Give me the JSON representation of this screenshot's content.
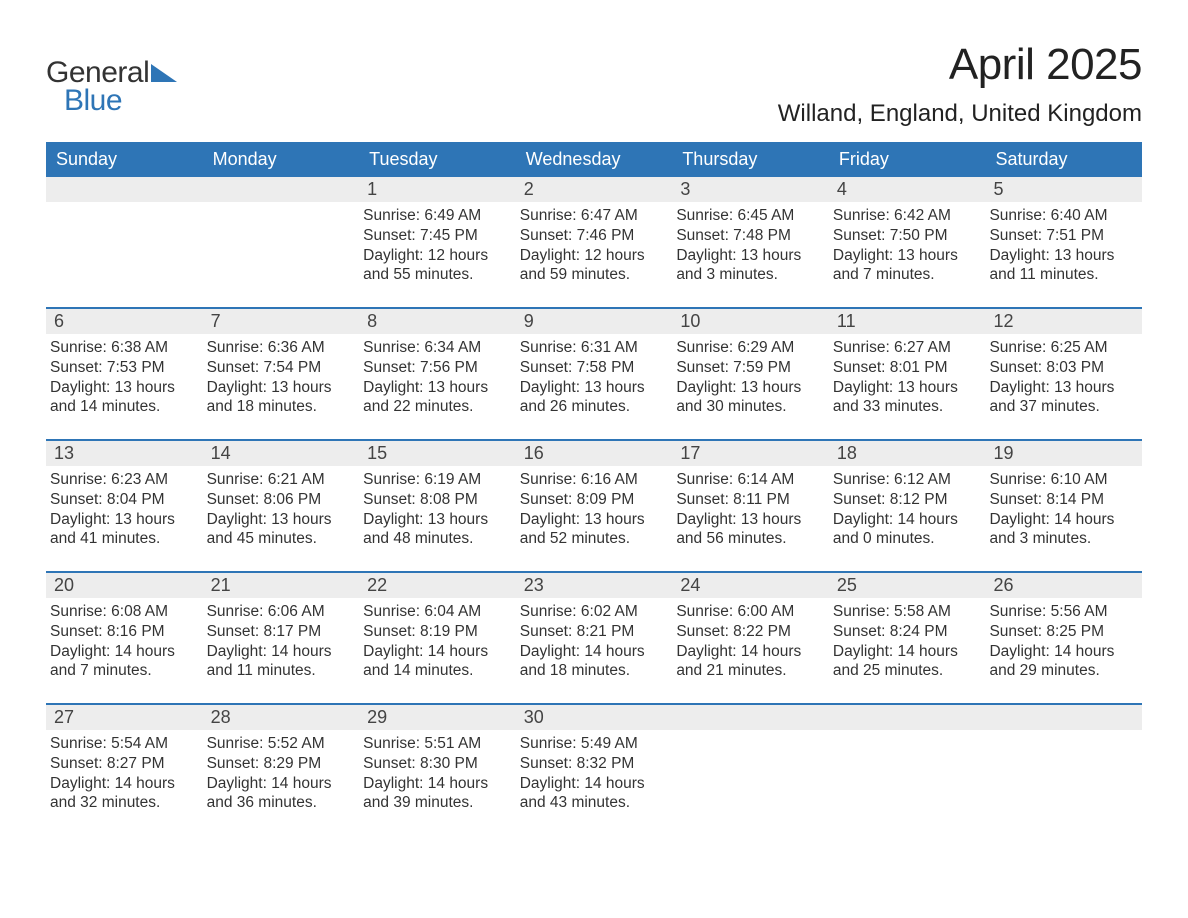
{
  "logo": {
    "line1": "General",
    "line2": "Blue",
    "flag_color": "#2e75b6"
  },
  "title": "April 2025",
  "location": "Willand, England, United Kingdom",
  "colors": {
    "header_bg": "#2e75b6",
    "header_text": "#ffffff",
    "daynum_bg": "#ededed",
    "text": "#333333",
    "rule": "#2e75b6",
    "page_bg": "#ffffff"
  },
  "typography": {
    "title_fontsize_pt": 33,
    "location_fontsize_pt": 18,
    "dow_fontsize_pt": 14,
    "body_fontsize_pt": 12,
    "daynum_fontsize_pt": 14,
    "font_family": "Arial"
  },
  "days_of_week": [
    "Sunday",
    "Monday",
    "Tuesday",
    "Wednesday",
    "Thursday",
    "Friday",
    "Saturday"
  ],
  "weeks": [
    [
      null,
      null,
      {
        "d": "1",
        "sunrise": "Sunrise: 6:49 AM",
        "sunset": "Sunset: 7:45 PM",
        "dl1": "Daylight: 12 hours",
        "dl2": "and 55 minutes."
      },
      {
        "d": "2",
        "sunrise": "Sunrise: 6:47 AM",
        "sunset": "Sunset: 7:46 PM",
        "dl1": "Daylight: 12 hours",
        "dl2": "and 59 minutes."
      },
      {
        "d": "3",
        "sunrise": "Sunrise: 6:45 AM",
        "sunset": "Sunset: 7:48 PM",
        "dl1": "Daylight: 13 hours",
        "dl2": "and 3 minutes."
      },
      {
        "d": "4",
        "sunrise": "Sunrise: 6:42 AM",
        "sunset": "Sunset: 7:50 PM",
        "dl1": "Daylight: 13 hours",
        "dl2": "and 7 minutes."
      },
      {
        "d": "5",
        "sunrise": "Sunrise: 6:40 AM",
        "sunset": "Sunset: 7:51 PM",
        "dl1": "Daylight: 13 hours",
        "dl2": "and 11 minutes."
      }
    ],
    [
      {
        "d": "6",
        "sunrise": "Sunrise: 6:38 AM",
        "sunset": "Sunset: 7:53 PM",
        "dl1": "Daylight: 13 hours",
        "dl2": "and 14 minutes."
      },
      {
        "d": "7",
        "sunrise": "Sunrise: 6:36 AM",
        "sunset": "Sunset: 7:54 PM",
        "dl1": "Daylight: 13 hours",
        "dl2": "and 18 minutes."
      },
      {
        "d": "8",
        "sunrise": "Sunrise: 6:34 AM",
        "sunset": "Sunset: 7:56 PM",
        "dl1": "Daylight: 13 hours",
        "dl2": "and 22 minutes."
      },
      {
        "d": "9",
        "sunrise": "Sunrise: 6:31 AM",
        "sunset": "Sunset: 7:58 PM",
        "dl1": "Daylight: 13 hours",
        "dl2": "and 26 minutes."
      },
      {
        "d": "10",
        "sunrise": "Sunrise: 6:29 AM",
        "sunset": "Sunset: 7:59 PM",
        "dl1": "Daylight: 13 hours",
        "dl2": "and 30 minutes."
      },
      {
        "d": "11",
        "sunrise": "Sunrise: 6:27 AM",
        "sunset": "Sunset: 8:01 PM",
        "dl1": "Daylight: 13 hours",
        "dl2": "and 33 minutes."
      },
      {
        "d": "12",
        "sunrise": "Sunrise: 6:25 AM",
        "sunset": "Sunset: 8:03 PM",
        "dl1": "Daylight: 13 hours",
        "dl2": "and 37 minutes."
      }
    ],
    [
      {
        "d": "13",
        "sunrise": "Sunrise: 6:23 AM",
        "sunset": "Sunset: 8:04 PM",
        "dl1": "Daylight: 13 hours",
        "dl2": "and 41 minutes."
      },
      {
        "d": "14",
        "sunrise": "Sunrise: 6:21 AM",
        "sunset": "Sunset: 8:06 PM",
        "dl1": "Daylight: 13 hours",
        "dl2": "and 45 minutes."
      },
      {
        "d": "15",
        "sunrise": "Sunrise: 6:19 AM",
        "sunset": "Sunset: 8:08 PM",
        "dl1": "Daylight: 13 hours",
        "dl2": "and 48 minutes."
      },
      {
        "d": "16",
        "sunrise": "Sunrise: 6:16 AM",
        "sunset": "Sunset: 8:09 PM",
        "dl1": "Daylight: 13 hours",
        "dl2": "and 52 minutes."
      },
      {
        "d": "17",
        "sunrise": "Sunrise: 6:14 AM",
        "sunset": "Sunset: 8:11 PM",
        "dl1": "Daylight: 13 hours",
        "dl2": "and 56 minutes."
      },
      {
        "d": "18",
        "sunrise": "Sunrise: 6:12 AM",
        "sunset": "Sunset: 8:12 PM",
        "dl1": "Daylight: 14 hours",
        "dl2": "and 0 minutes."
      },
      {
        "d": "19",
        "sunrise": "Sunrise: 6:10 AM",
        "sunset": "Sunset: 8:14 PM",
        "dl1": "Daylight: 14 hours",
        "dl2": "and 3 minutes."
      }
    ],
    [
      {
        "d": "20",
        "sunrise": "Sunrise: 6:08 AM",
        "sunset": "Sunset: 8:16 PM",
        "dl1": "Daylight: 14 hours",
        "dl2": "and 7 minutes."
      },
      {
        "d": "21",
        "sunrise": "Sunrise: 6:06 AM",
        "sunset": "Sunset: 8:17 PM",
        "dl1": "Daylight: 14 hours",
        "dl2": "and 11 minutes."
      },
      {
        "d": "22",
        "sunrise": "Sunrise: 6:04 AM",
        "sunset": "Sunset: 8:19 PM",
        "dl1": "Daylight: 14 hours",
        "dl2": "and 14 minutes."
      },
      {
        "d": "23",
        "sunrise": "Sunrise: 6:02 AM",
        "sunset": "Sunset: 8:21 PM",
        "dl1": "Daylight: 14 hours",
        "dl2": "and 18 minutes."
      },
      {
        "d": "24",
        "sunrise": "Sunrise: 6:00 AM",
        "sunset": "Sunset: 8:22 PM",
        "dl1": "Daylight: 14 hours",
        "dl2": "and 21 minutes."
      },
      {
        "d": "25",
        "sunrise": "Sunrise: 5:58 AM",
        "sunset": "Sunset: 8:24 PM",
        "dl1": "Daylight: 14 hours",
        "dl2": "and 25 minutes."
      },
      {
        "d": "26",
        "sunrise": "Sunrise: 5:56 AM",
        "sunset": "Sunset: 8:25 PM",
        "dl1": "Daylight: 14 hours",
        "dl2": "and 29 minutes."
      }
    ],
    [
      {
        "d": "27",
        "sunrise": "Sunrise: 5:54 AM",
        "sunset": "Sunset: 8:27 PM",
        "dl1": "Daylight: 14 hours",
        "dl2": "and 32 minutes."
      },
      {
        "d": "28",
        "sunrise": "Sunrise: 5:52 AM",
        "sunset": "Sunset: 8:29 PM",
        "dl1": "Daylight: 14 hours",
        "dl2": "and 36 minutes."
      },
      {
        "d": "29",
        "sunrise": "Sunrise: 5:51 AM",
        "sunset": "Sunset: 8:30 PM",
        "dl1": "Daylight: 14 hours",
        "dl2": "and 39 minutes."
      },
      {
        "d": "30",
        "sunrise": "Sunrise: 5:49 AM",
        "sunset": "Sunset: 8:32 PM",
        "dl1": "Daylight: 14 hours",
        "dl2": "and 43 minutes."
      },
      null,
      null,
      null
    ]
  ]
}
